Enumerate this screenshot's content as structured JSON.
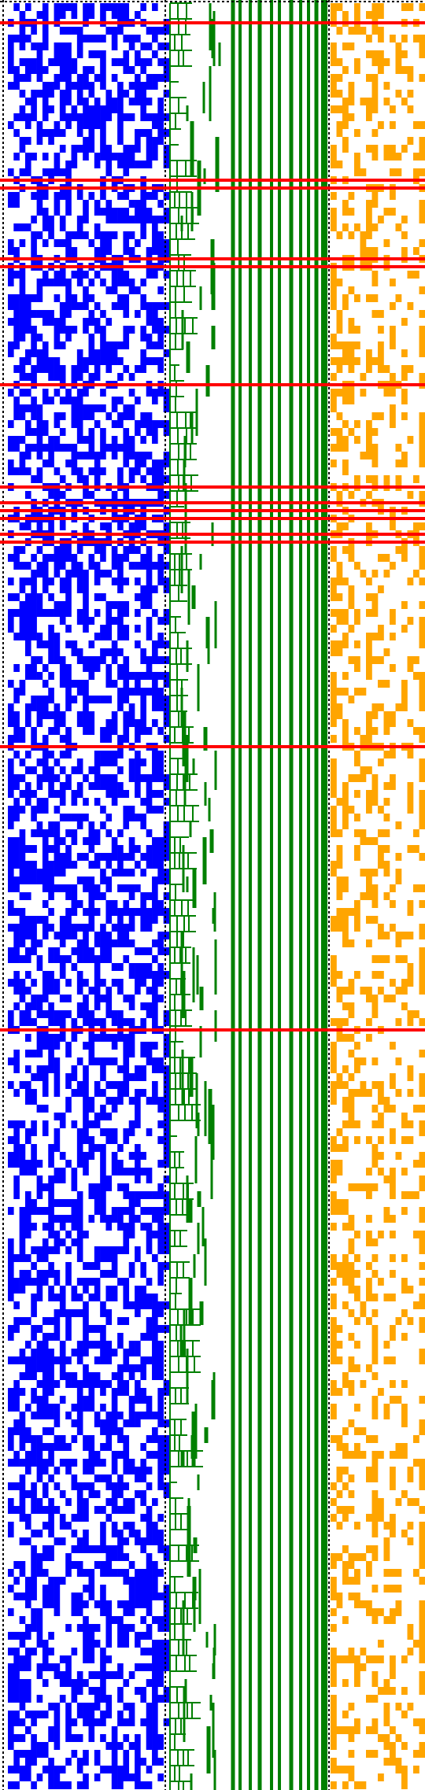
{
  "colors": {
    "background": "#ffffff",
    "left_cells": "#0000ff",
    "tree_lines": "#008000",
    "right_cells": "#ffa500",
    "highlight_rows": "#ff0000",
    "separator": "#000000"
  },
  "grid": {
    "rows": 227,
    "left_columns": 28,
    "right_columns": 16,
    "tree_columns": 26
  },
  "highlighted_rows": [
    2,
    22,
    23,
    32,
    33,
    48,
    61,
    63,
    64,
    65,
    67,
    68,
    94,
    130
  ],
  "vertical_green_lines": 12
}
